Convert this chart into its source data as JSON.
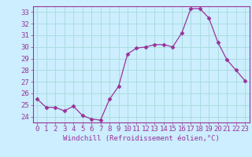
{
  "x": [
    0,
    1,
    2,
    3,
    4,
    5,
    6,
    7,
    8,
    9,
    10,
    11,
    12,
    13,
    14,
    15,
    16,
    17,
    18,
    19,
    20,
    21,
    22,
    23
  ],
  "y": [
    25.5,
    24.8,
    24.8,
    24.5,
    24.9,
    24.1,
    23.8,
    23.7,
    25.5,
    26.6,
    29.4,
    29.9,
    30.0,
    30.2,
    30.2,
    30.0,
    31.2,
    33.3,
    33.3,
    32.5,
    30.4,
    28.9,
    28.0,
    27.1
  ],
  "line_color": "#993399",
  "marker": "D",
  "marker_size": 2.5,
  "bg_color": "#cceeff",
  "grid_color": "#aadddd",
  "axis_color": "#993399",
  "tick_color": "#993399",
  "xlabel": "Windchill (Refroidissement éolien,°C)",
  "xlim": [
    -0.5,
    23.5
  ],
  "ylim": [
    23.5,
    33.5
  ],
  "yticks": [
    24,
    25,
    26,
    27,
    28,
    29,
    30,
    31,
    32,
    33
  ],
  "xticks": [
    0,
    1,
    2,
    3,
    4,
    5,
    6,
    7,
    8,
    9,
    10,
    11,
    12,
    13,
    14,
    15,
    16,
    17,
    18,
    19,
    20,
    21,
    22,
    23
  ],
  "font_size": 6.5
}
